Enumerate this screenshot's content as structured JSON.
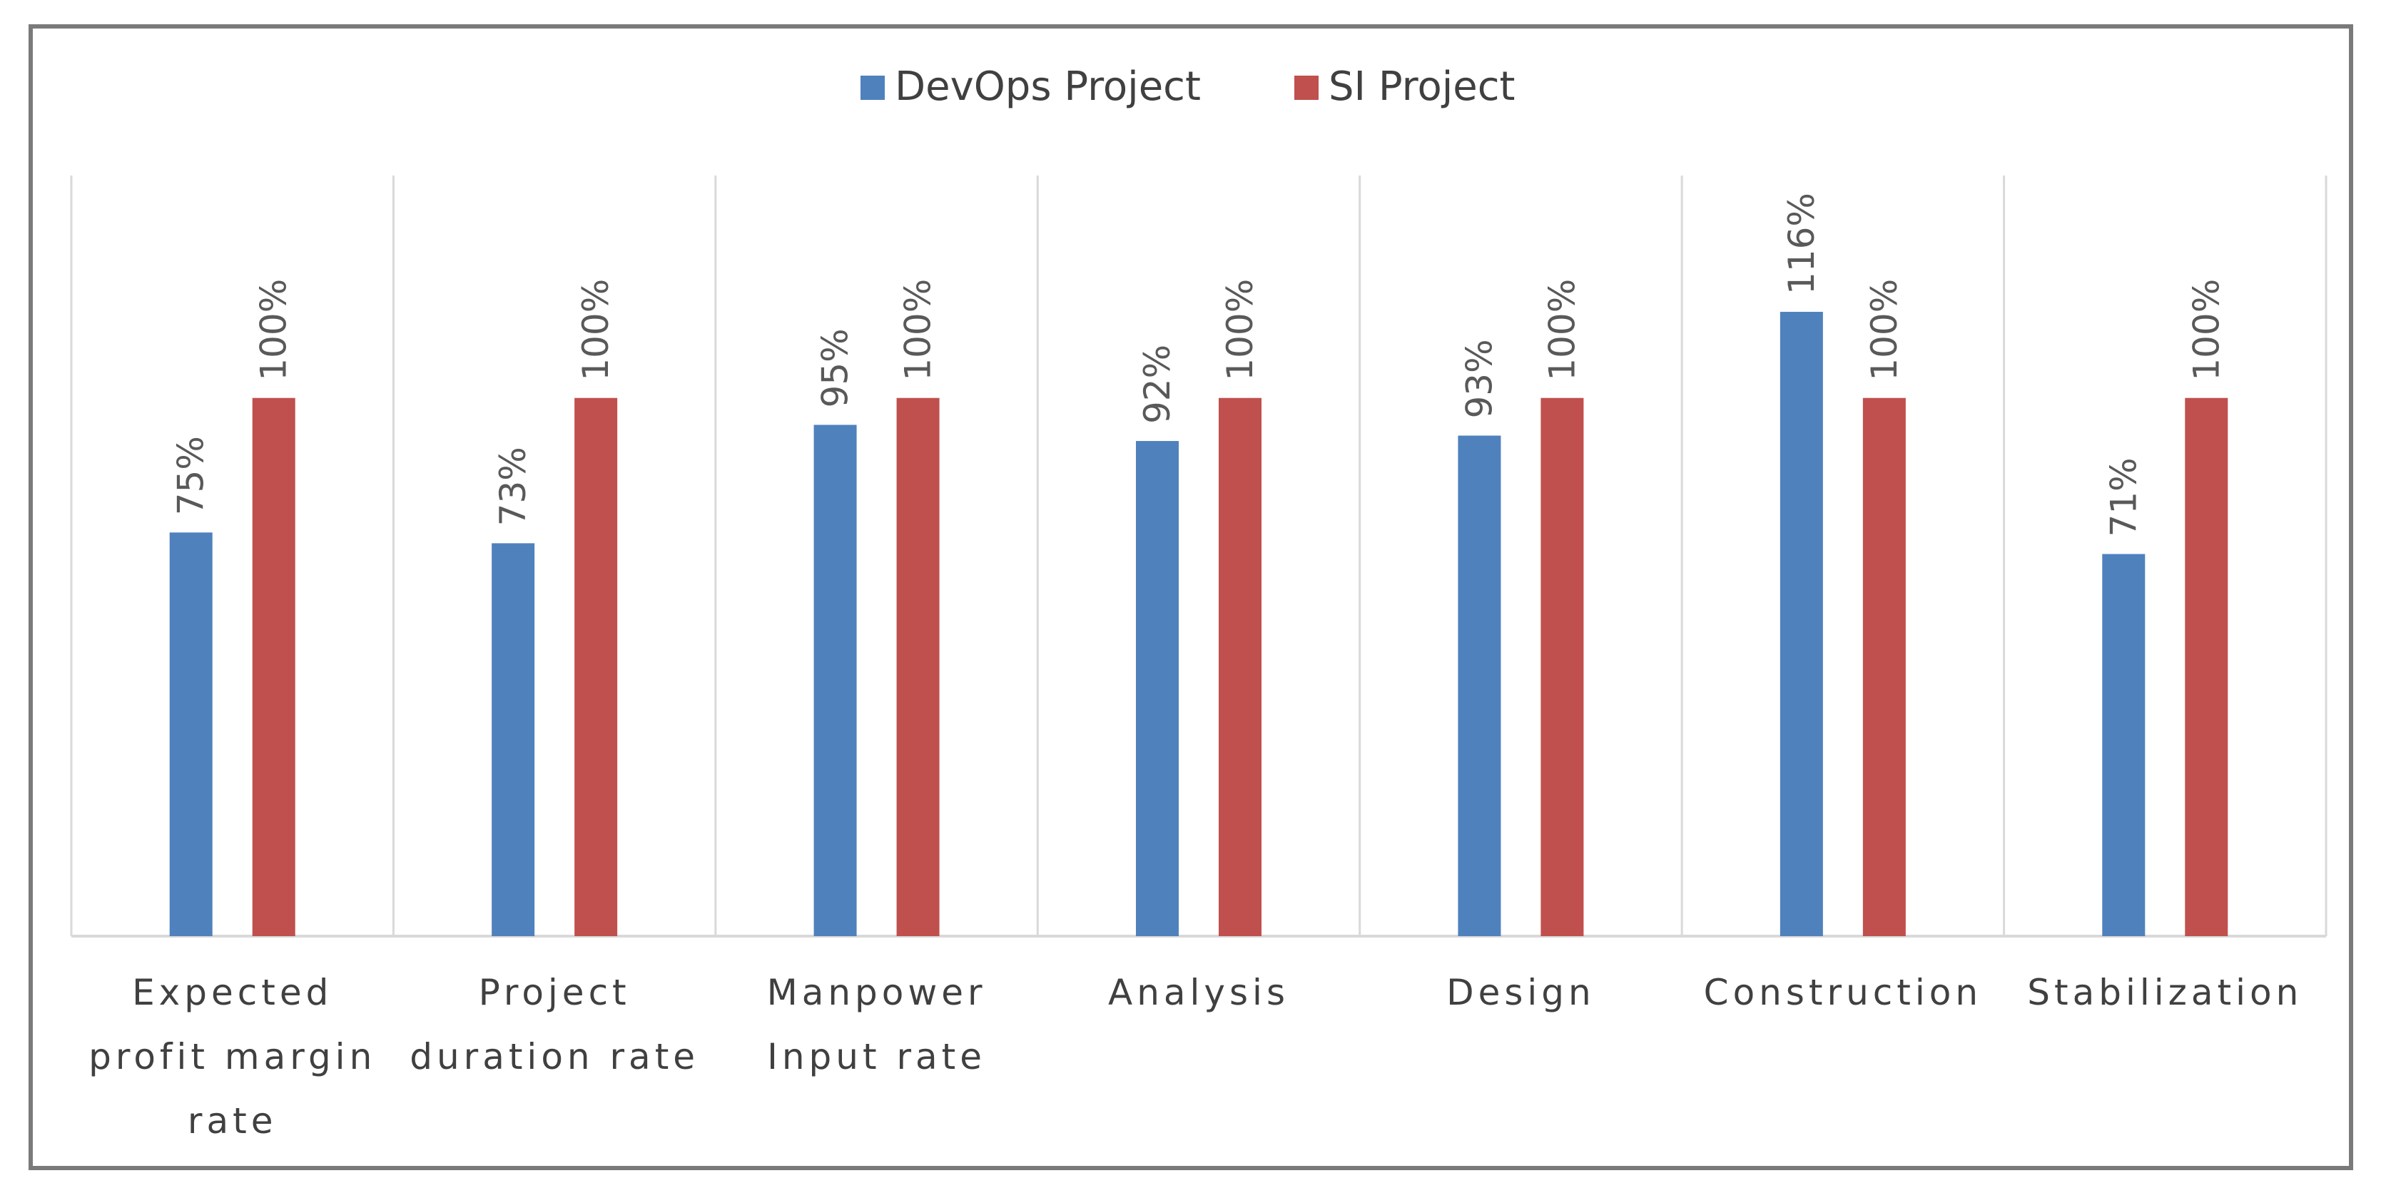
{
  "chart_data": {
    "type": "bar",
    "title": "",
    "xlabel": "",
    "ylabel": "",
    "ylim": [
      0,
      140
    ],
    "grid": "vertical category separators",
    "legend_position": "top-center",
    "categories": [
      [
        "Expected",
        "profit margin",
        "rate"
      ],
      [
        "Project",
        "duration rate"
      ],
      [
        "Manpower",
        "Input rate"
      ],
      [
        "Analysis"
      ],
      [
        "Design"
      ],
      [
        "Construction"
      ],
      [
        "Stabilization"
      ]
    ],
    "series": [
      {
        "name": "DevOps Project",
        "color": "#4f81bd",
        "values": [
          75,
          73,
          95,
          92,
          93,
          116,
          71
        ],
        "labels": [
          "75%",
          "73%",
          "95%",
          "92%",
          "93%",
          "116%",
          "71%"
        ]
      },
      {
        "name": "SI Project",
        "color": "#c0504d",
        "values": [
          100,
          100,
          100,
          100,
          100,
          100,
          100
        ],
        "labels": [
          "100%",
          "100%",
          "100%",
          "100%",
          "100%",
          "100%",
          "100%"
        ]
      }
    ]
  }
}
